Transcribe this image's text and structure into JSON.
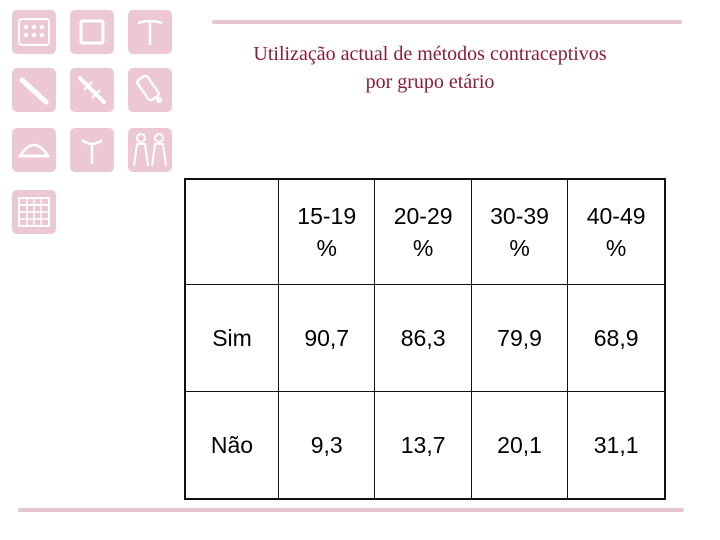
{
  "slide": {
    "title_line1": "Utilização actual de métodos contraceptivos",
    "title_line2": "por grupo etário"
  },
  "icons": [
    {
      "name": "contraceptive-pill-pack-icon"
    },
    {
      "name": "patch-icon"
    },
    {
      "name": "iud-t-icon"
    },
    {
      "name": "condom-icon"
    },
    {
      "name": "syringe-injection-icon"
    },
    {
      "name": "spermicide-tube-icon"
    },
    {
      "name": "diaphragm-icon"
    },
    {
      "name": "copper-iud-icon"
    },
    {
      "name": "sterilization-figures-icon"
    },
    {
      "name": "calendar-method-icon"
    }
  ],
  "table": {
    "columns": [
      {
        "range": "15-19",
        "unit": "%"
      },
      {
        "range": "20-29",
        "unit": "%"
      },
      {
        "range": "30-39",
        "unit": "%"
      },
      {
        "range": "40-49",
        "unit": "%"
      }
    ],
    "rows": [
      {
        "label": "Sim",
        "values": [
          "90,7",
          "86,3",
          "79,9",
          "68,9"
        ]
      },
      {
        "label": "Não",
        "values": [
          "9,3",
          "13,7",
          "20,1",
          "31,1"
        ]
      }
    ]
  },
  "colors": {
    "accent_pink": "#ecc8d3",
    "title": "#8a1c3a",
    "icon_stroke": "#ffffff"
  }
}
